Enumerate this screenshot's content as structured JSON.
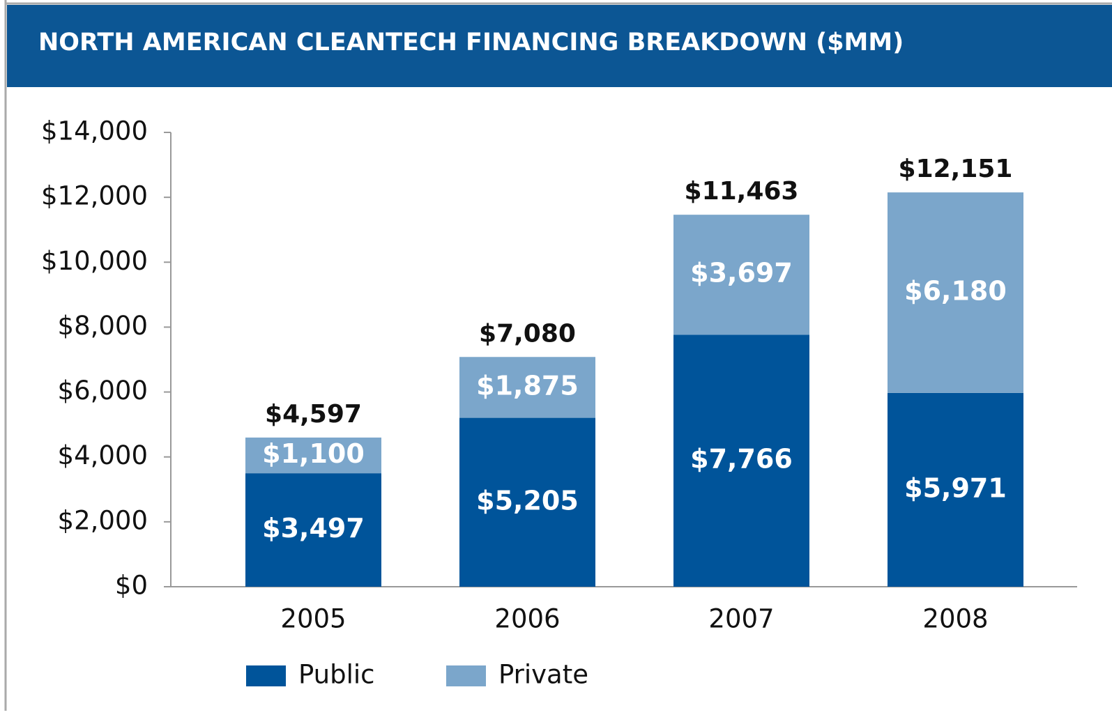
{
  "chart_data": {
    "type": "bar",
    "stacked": true,
    "title": "NORTH AMERICAN CLEANTECH FINANCING BREAKDOWN ($MM)",
    "categories": [
      "2005",
      "2006",
      "2007",
      "2008"
    ],
    "series": [
      {
        "name": "Public",
        "color": "#00549a",
        "values": [
          3497,
          5205,
          7766,
          5971
        ],
        "value_labels": [
          "$3,497",
          "$5,205",
          "$7,766",
          "$5,971"
        ]
      },
      {
        "name": "Private",
        "color": "#7ba6cb",
        "values": [
          1100,
          1875,
          3697,
          6180
        ],
        "value_labels": [
          "$1,100",
          "$1,875",
          "$3,697",
          "$6,180"
        ]
      }
    ],
    "totals": [
      4597,
      7080,
      11463,
      12151
    ],
    "total_labels": [
      "$4,597",
      "$7,080",
      "$11,463",
      "$12,151"
    ],
    "ylim": [
      0,
      14000
    ],
    "yticks": [
      {
        "value": 0,
        "label": "$0"
      },
      {
        "value": 2000,
        "label": "$2,000"
      },
      {
        "value": 4000,
        "label": "$4,000"
      },
      {
        "value": 6000,
        "label": "$6,000"
      },
      {
        "value": 8000,
        "label": "$8,000"
      },
      {
        "value": 10000,
        "label": "$10,000"
      },
      {
        "value": 12000,
        "label": "$12,000"
      },
      {
        "value": 14000,
        "label": "$14,000"
      }
    ],
    "legend": "bottom-left"
  }
}
